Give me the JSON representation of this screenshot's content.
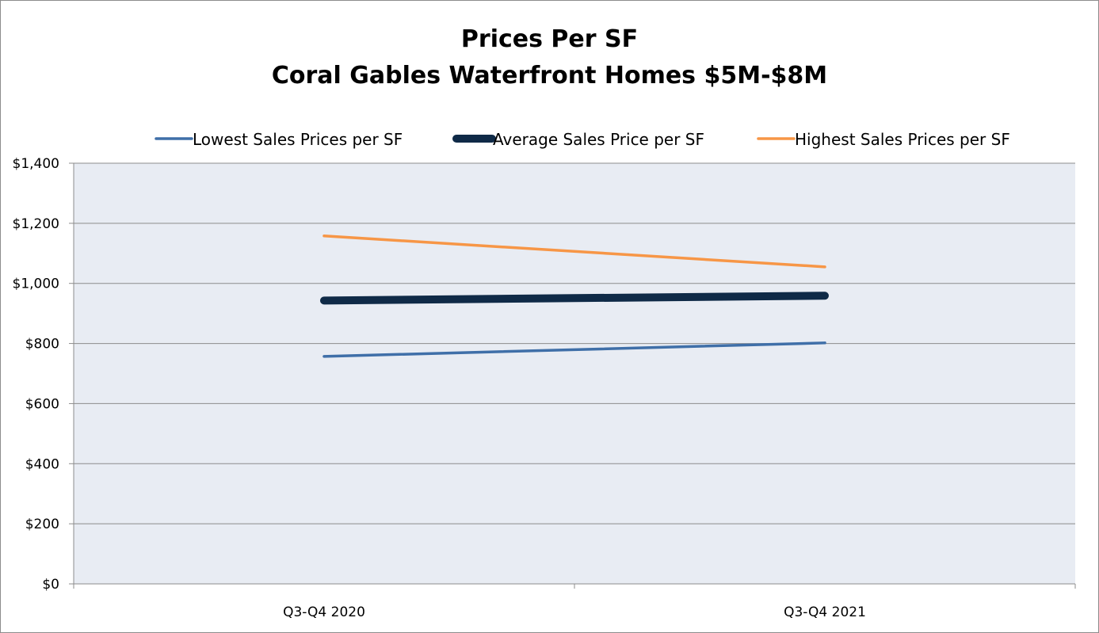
{
  "chart_data": {
    "type": "line",
    "title_line1": "Prices Per SF",
    "title_line2": "Coral Gables Waterfront Homes $5M-$8M",
    "categories": [
      "Q3-Q4 2020",
      "Q3-Q4 2021"
    ],
    "ylim": [
      0,
      1400
    ],
    "yticks": [
      0,
      200,
      400,
      600,
      800,
      1000,
      1200,
      1400
    ],
    "ytick_labels": [
      "$0",
      "$200",
      "$400",
      "$600",
      "$800",
      "$1,000",
      "$1,200",
      "$1,400"
    ],
    "grid": true,
    "legend_position": "top",
    "plot_background": "#e8ecf3",
    "series": [
      {
        "name": "Lowest Sales Prices per SF",
        "values": [
          757,
          802
        ],
        "color": "#3f6fa8",
        "weight": "thin"
      },
      {
        "name": "Average Sales Price per SF",
        "values": [
          943,
          959
        ],
        "color": "#0f2a47",
        "weight": "thick"
      },
      {
        "name": "Highest Sales Prices per SF",
        "values": [
          1158,
          1055
        ],
        "color": "#f79646",
        "weight": "thin"
      }
    ]
  }
}
